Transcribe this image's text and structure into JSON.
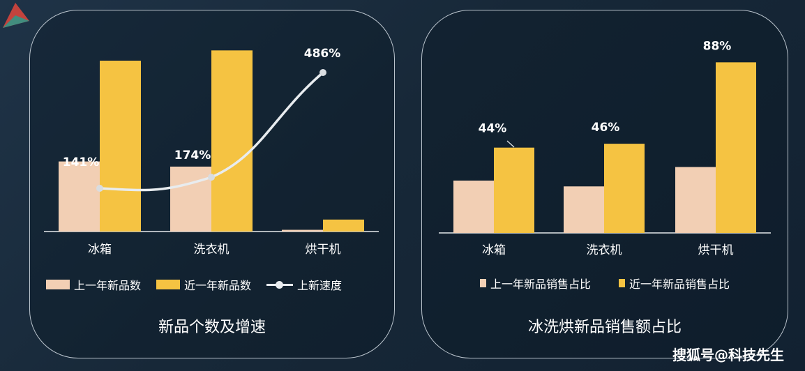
{
  "colors": {
    "prev": "#f2cfb4",
    "recent": "#f5c342",
    "line": "#e8ecef",
    "axis": "#e6e9ec"
  },
  "chart_data": [
    {
      "type": "bar",
      "categories": [
        "冰箱",
        "洗衣机",
        "烘干机"
      ],
      "series": [
        {
          "name": "上一年新品数",
          "values": [
            41,
            38,
            1
          ]
        },
        {
          "name": "近一年新品数",
          "values": [
            100,
            106,
            7
          ]
        },
        {
          "name": "上新速度",
          "type": "line",
          "values": [
            141,
            174,
            486
          ],
          "labels": [
            "141%",
            "174%",
            "486%"
          ]
        }
      ],
      "title": "新品个数及增速",
      "legend": [
        "上一年新品数",
        "近一年新品数",
        "上新速度"
      ],
      "legend_position": "bottom",
      "grid": false
    },
    {
      "type": "bar",
      "categories": [
        "冰箱",
        "洗衣机",
        "烘干机"
      ],
      "series": [
        {
          "name": "上一年新品销售占比",
          "values": [
            27,
            24,
            34
          ]
        },
        {
          "name": "近一年新品销售占比",
          "values": [
            44,
            46,
            88
          ],
          "labels": [
            "44%",
            "46%",
            "88%"
          ]
        }
      ],
      "title": "冰洗烘新品销售额占比",
      "legend": [
        "上一年新品销售占比",
        "近一年新品销售占比"
      ],
      "legend_position": "bottom",
      "grid": false
    }
  ],
  "watermark": "搜狐号@科技先生"
}
